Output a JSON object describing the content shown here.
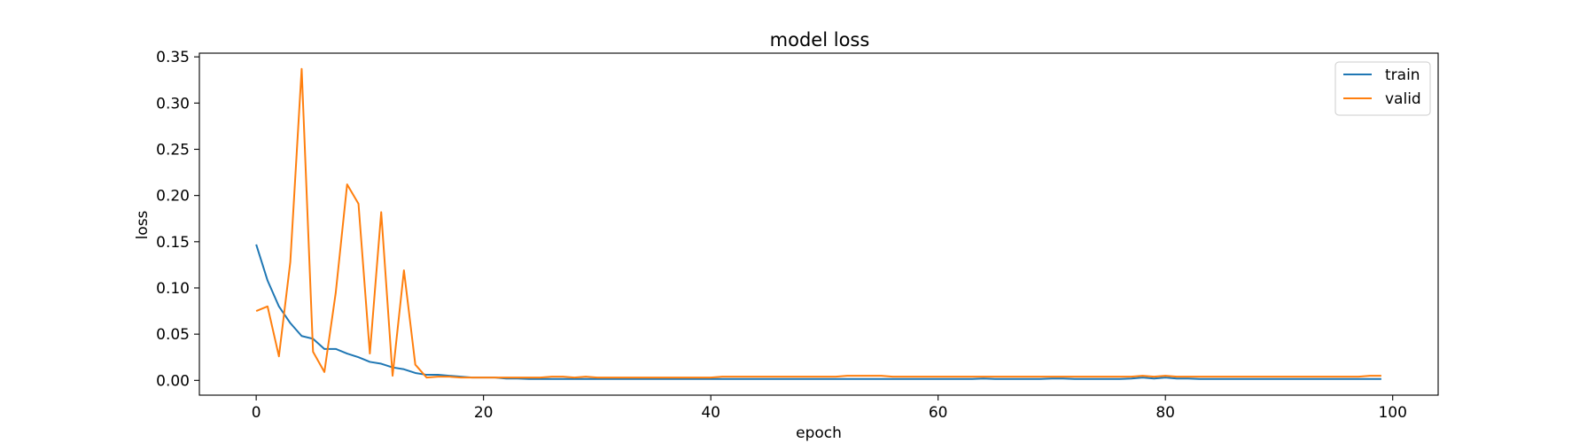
{
  "chart_data": {
    "type": "line",
    "title": "model loss",
    "xlabel": "epoch",
    "ylabel": "loss",
    "xlim": [
      -5,
      104
    ],
    "ylim": [
      -0.016,
      0.354
    ],
    "xticks": [
      0,
      20,
      40,
      60,
      80,
      100
    ],
    "xtick_labels": [
      "0",
      "20",
      "40",
      "60",
      "80",
      "100"
    ],
    "yticks": [
      0.0,
      0.05,
      0.1,
      0.15,
      0.2,
      0.25,
      0.3,
      0.35
    ],
    "ytick_labels": [
      "0.00",
      "0.05",
      "0.10",
      "0.15",
      "0.20",
      "0.25",
      "0.30",
      "0.35"
    ],
    "grid": false,
    "legend_position": "top-right",
    "x": [
      0,
      1,
      2,
      3,
      4,
      5,
      6,
      7,
      8,
      9,
      10,
      11,
      12,
      13,
      14,
      15,
      16,
      17,
      18,
      19,
      20,
      21,
      22,
      23,
      24,
      25,
      26,
      27,
      28,
      29,
      30,
      31,
      32,
      33,
      34,
      35,
      36,
      37,
      38,
      39,
      40,
      41,
      42,
      43,
      44,
      45,
      46,
      47,
      48,
      49,
      50,
      51,
      52,
      53,
      54,
      55,
      56,
      57,
      58,
      59,
      60,
      61,
      62,
      63,
      64,
      65,
      66,
      67,
      68,
      69,
      70,
      71,
      72,
      73,
      74,
      75,
      76,
      77,
      78,
      79,
      80,
      81,
      82,
      83,
      84,
      85,
      86,
      87,
      88,
      89,
      90,
      91,
      92,
      93,
      94,
      95,
      96,
      97,
      98,
      99
    ],
    "series": [
      {
        "name": "train",
        "color": "#1f77b4",
        "values": [
          0.147,
          0.108,
          0.08,
          0.062,
          0.048,
          0.045,
          0.034,
          0.034,
          0.029,
          0.025,
          0.02,
          0.018,
          0.014,
          0.012,
          0.008,
          0.006,
          0.006,
          0.005,
          0.004,
          0.003,
          0.003,
          0.003,
          0.002,
          0.002,
          0.0015,
          0.0015,
          0.0015,
          0.0015,
          0.0015,
          0.0015,
          0.0015,
          0.0015,
          0.0015,
          0.0015,
          0.0015,
          0.0015,
          0.0015,
          0.0015,
          0.0015,
          0.0015,
          0.0015,
          0.0015,
          0.0015,
          0.0015,
          0.0015,
          0.0015,
          0.0015,
          0.0015,
          0.0015,
          0.0015,
          0.0015,
          0.0015,
          0.0015,
          0.0015,
          0.0015,
          0.0015,
          0.0015,
          0.0015,
          0.0015,
          0.0015,
          0.0015,
          0.0015,
          0.0015,
          0.0015,
          0.002,
          0.0015,
          0.0015,
          0.0015,
          0.0015,
          0.0015,
          0.002,
          0.002,
          0.0015,
          0.0015,
          0.0015,
          0.0015,
          0.0015,
          0.002,
          0.003,
          0.002,
          0.003,
          0.002,
          0.002,
          0.0015,
          0.0015,
          0.0015,
          0.0015,
          0.0015,
          0.0015,
          0.0015,
          0.0015,
          0.0015,
          0.0015,
          0.0015,
          0.0015,
          0.0015,
          0.0015,
          0.0015,
          0.0015,
          0.0015
        ]
      },
      {
        "name": "valid",
        "color": "#ff7f0e",
        "values": [
          0.075,
          0.08,
          0.026,
          0.128,
          0.337,
          0.031,
          0.009,
          0.095,
          0.212,
          0.191,
          0.029,
          0.182,
          0.005,
          0.119,
          0.017,
          0.003,
          0.004,
          0.004,
          0.003,
          0.003,
          0.003,
          0.003,
          0.003,
          0.003,
          0.003,
          0.003,
          0.004,
          0.004,
          0.003,
          0.004,
          0.003,
          0.003,
          0.003,
          0.003,
          0.003,
          0.003,
          0.003,
          0.003,
          0.003,
          0.003,
          0.003,
          0.004,
          0.004,
          0.004,
          0.004,
          0.004,
          0.004,
          0.004,
          0.004,
          0.004,
          0.004,
          0.004,
          0.005,
          0.005,
          0.005,
          0.005,
          0.004,
          0.004,
          0.004,
          0.004,
          0.004,
          0.004,
          0.004,
          0.004,
          0.004,
          0.004,
          0.004,
          0.004,
          0.004,
          0.004,
          0.004,
          0.004,
          0.004,
          0.004,
          0.004,
          0.004,
          0.004,
          0.004,
          0.005,
          0.004,
          0.005,
          0.004,
          0.004,
          0.004,
          0.004,
          0.004,
          0.004,
          0.004,
          0.004,
          0.004,
          0.004,
          0.004,
          0.004,
          0.004,
          0.004,
          0.004,
          0.004,
          0.004,
          0.005,
          0.005
        ]
      }
    ]
  }
}
